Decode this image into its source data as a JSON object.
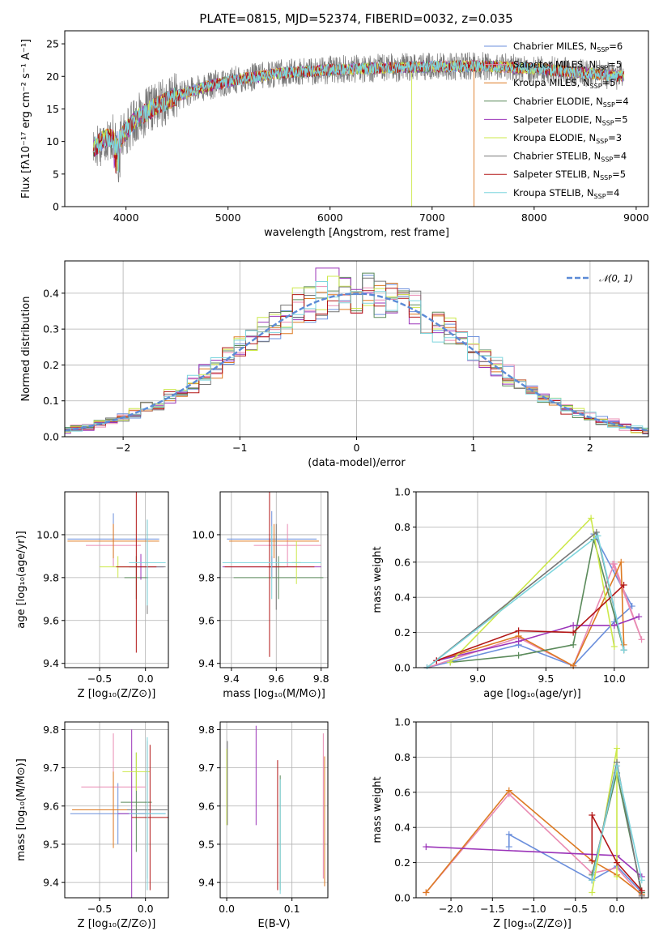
{
  "figure": {
    "title": "PLATE=0815, MJD=52374, FIBERID=0032, z=0.035"
  },
  "series": [
    {
      "name": "Chabrier MILES",
      "nssp": "6",
      "color": "#6b8fdc"
    },
    {
      "name": "Salpeter MILES",
      "nssp": "5",
      "color": "#e98bb3"
    },
    {
      "name": "Kroupa MILES",
      "nssp": "5",
      "color": "#dd7a22"
    },
    {
      "name": "Chabrier ELODIE",
      "nssp": "4",
      "color": "#5a8a5a"
    },
    {
      "name": "Salpeter ELODIE",
      "nssp": "5",
      "color": "#9b34b9"
    },
    {
      "name": "Kroupa ELODIE",
      "nssp": "3",
      "color": "#cce84a"
    },
    {
      "name": "Chabrier STELIB",
      "nssp": "4",
      "color": "#777777"
    },
    {
      "name": "Salpeter STELIB",
      "nssp": "5",
      "color": "#b21616"
    },
    {
      "name": "Kroupa STELIB",
      "nssp": "4",
      "color": "#7dd5dd"
    }
  ],
  "chart_data": [
    {
      "id": "spectrum",
      "type": "line",
      "title": "PLATE=0815, MJD=52374, FIBERID=0032, z=0.035",
      "xlabel": "wavelength [Angstrom, rest frame]",
      "ylabel": "Flux [fλ10⁻¹⁷ erg cm⁻² s⁻¹ A⁻¹]",
      "xlim": [
        3400,
        9120
      ],
      "ylim": [
        0,
        27
      ],
      "xticks": [
        4000,
        5000,
        6000,
        7000,
        8000,
        9000
      ],
      "yticks": [
        0,
        5,
        10,
        15,
        20,
        25
      ],
      "grid": false,
      "legend": "upper right",
      "continuum": {
        "x": [
          3680,
          3800,
          3950,
          4100,
          4300,
          4500,
          4800,
          5100,
          5500,
          6000,
          6500,
          7000,
          7500,
          8000,
          8500,
          8880
        ],
        "y": [
          9.0,
          10.5,
          10.5,
          13.5,
          15.5,
          17.0,
          18.5,
          19.5,
          20.5,
          21.0,
          21.3,
          21.5,
          21.6,
          21.2,
          20.5,
          20.0
        ]
      },
      "dropouts": [
        {
          "series": "Kroupa ELODIE",
          "x": 6800,
          "to": 0
        },
        {
          "series": "Kroupa MILES",
          "x": 7410,
          "to": 0
        }
      ]
    },
    {
      "id": "residuals",
      "type": "step",
      "xlabel": "(data-model)/error",
      "ylabel": "Normed distribution",
      "xlim": [
        -2.5,
        2.5
      ],
      "ylim": [
        0,
        0.49
      ],
      "xticks": [
        -2,
        -1,
        0,
        1,
        2
      ],
      "yticks": [
        0.0,
        0.1,
        0.2,
        0.3,
        0.4
      ],
      "grid": true,
      "legend": "upper right",
      "reference": {
        "name": "𝒩(0, 1)",
        "style": "dashed",
        "color": "#5b8ad6"
      },
      "bin_width": 0.1
    },
    {
      "id": "age-vs-z",
      "type": "errorbar",
      "xlabel": "Z [log₁₀(Z/Z⊙)]",
      "ylabel": "age  [log₁₀(age/yr)]",
      "xlim": [
        -0.88,
        0.25
      ],
      "ylim": [
        9.38,
        10.2
      ],
      "xticks": [
        -0.5,
        0.0
      ],
      "yticks": [
        9.4,
        9.6,
        9.8,
        10.0
      ],
      "grid": true,
      "points": [
        {
          "series": "Chabrier MILES",
          "x": -0.35,
          "xerr": 0.5,
          "y": 9.98,
          "yerr": 0.12
        },
        {
          "series": "Salpeter MILES",
          "x": -0.35,
          "xerr": 0.3,
          "y": 9.95,
          "yerr": 0.1
        },
        {
          "series": "Kroupa MILES",
          "x": -0.35,
          "xerr": 0.5,
          "y": 9.97,
          "yerr": 0.08
        },
        {
          "series": "Chabrier ELODIE",
          "x": -0.1,
          "xerr": 0.13,
          "y": 9.8,
          "yerr": 0.1
        },
        {
          "series": "Salpeter ELODIE",
          "x": -0.05,
          "xerr": 0.25,
          "y": 9.85,
          "yerr": 0.06
        },
        {
          "series": "Kroupa ELODIE",
          "x": -0.3,
          "xerr": 0.2,
          "y": 9.85,
          "yerr": 0.05
        },
        {
          "series": "Chabrier STELIB",
          "x": 0.02,
          "xerr": 0.2,
          "y": 9.85,
          "yerr": 0.22
        },
        {
          "series": "Salpeter STELIB",
          "x": -0.1,
          "xerr": 0.22,
          "y": 9.85,
          "yerr": 0.4
        },
        {
          "series": "Kroupa STELIB",
          "x": 0.02,
          "xerr": 0.2,
          "y": 9.87,
          "yerr": 0.2
        }
      ]
    },
    {
      "id": "age-vs-mass",
      "type": "errorbar",
      "xlabel": "mass [log₁₀(M/M⊙)]",
      "ylabel": "",
      "xlim": [
        9.35,
        9.83
      ],
      "ylim": [
        9.38,
        10.2
      ],
      "xticks": [
        9.4,
        9.6,
        9.8
      ],
      "yticks": [
        9.4,
        9.6,
        9.8,
        10.0
      ],
      "grid": true,
      "points": [
        {
          "series": "Chabrier MILES",
          "x": 9.58,
          "xerr": 0.2,
          "y": 9.98,
          "yerr": 0.13
        },
        {
          "series": "Salpeter MILES",
          "x": 9.65,
          "xerr": 0.15,
          "y": 9.95,
          "yerr": 0.1
        },
        {
          "series": "Kroupa MILES",
          "x": 9.59,
          "xerr": 0.2,
          "y": 9.97,
          "yerr": 0.08
        },
        {
          "series": "Chabrier ELODIE",
          "x": 9.61,
          "xerr": 0.2,
          "y": 9.8,
          "yerr": 0.1
        },
        {
          "series": "Salpeter ELODIE",
          "x": 9.58,
          "xerr": 0.22,
          "y": 9.85,
          "yerr": 0.05
        },
        {
          "series": "Kroupa ELODIE",
          "x": 9.69,
          "xerr": 0.02,
          "y": 9.87,
          "yerr": 0.1
        },
        {
          "series": "Chabrier STELIB",
          "x": 9.6,
          "xerr": 0.04,
          "y": 9.85,
          "yerr": 0.2
        },
        {
          "series": "Salpeter STELIB",
          "x": 9.57,
          "xerr": 0.2,
          "y": 9.85,
          "yerr": 0.42
        },
        {
          "series": "Kroupa STELIB",
          "x": 9.58,
          "xerr": 0.22,
          "y": 9.87,
          "yerr": 0.17
        }
      ]
    },
    {
      "id": "weight-vs-age",
      "type": "line",
      "xlabel": "age  [log₁₀(age/yr)]",
      "ylabel": "mass weight",
      "xlim": [
        8.55,
        10.25
      ],
      "ylim": [
        0,
        1.0
      ],
      "xticks": [
        9.0,
        9.5,
        10.0
      ],
      "yticks": [
        0.0,
        0.2,
        0.4,
        0.6,
        0.8,
        1.0
      ],
      "grid": true,
      "lines": [
        {
          "series": "Chabrier MILES",
          "x": [
            8.63,
            9.3,
            9.7,
            10.0,
            10.13,
            9.85
          ],
          "y": [
            0.0,
            0.13,
            0.01,
            0.26,
            0.35,
            0.76
          ]
        },
        {
          "series": "Salpeter MILES",
          "x": [
            8.63,
            9.3,
            9.7,
            10.0,
            10.2,
            9.99
          ],
          "y": [
            0.0,
            0.17,
            0.01,
            0.59,
            0.16,
            0.59
          ]
        },
        {
          "series": "Kroupa MILES",
          "x": [
            8.7,
            9.3,
            9.7,
            10.05,
            10.07
          ],
          "y": [
            0.04,
            0.18,
            0.01,
            0.6,
            0.13
          ]
        },
        {
          "series": "Chabrier ELODIE",
          "x": [
            8.8,
            9.3,
            9.7,
            9.85,
            10.07
          ],
          "y": [
            0.03,
            0.07,
            0.13,
            0.73,
            0.1
          ]
        },
        {
          "series": "Salpeter ELODIE",
          "x": [
            8.7,
            9.3,
            9.7,
            10.0,
            10.18
          ],
          "y": [
            0.04,
            0.15,
            0.24,
            0.24,
            0.29
          ]
        },
        {
          "series": "Kroupa ELODIE",
          "x": [
            8.8,
            9.83,
            10.0
          ],
          "y": [
            0.03,
            0.85,
            0.12
          ]
        },
        {
          "series": "Chabrier STELIB",
          "x": [
            8.63,
            9.87,
            10.07
          ],
          "y": [
            0.0,
            0.77,
            0.1
          ]
        },
        {
          "series": "Salpeter STELIB",
          "x": [
            8.7,
            9.3,
            9.7,
            10.07
          ],
          "y": [
            0.04,
            0.21,
            0.2,
            0.47
          ]
        },
        {
          "series": "Kroupa STELIB",
          "x": [
            8.63,
            9.88,
            10.07
          ],
          "y": [
            0.0,
            0.75,
            0.1
          ]
        }
      ]
    },
    {
      "id": "mass-vs-z",
      "type": "errorbar",
      "xlabel": "Z [log₁₀(Z/Z⊙)]",
      "ylabel": "mass [log₁₀(M/M⊙)]",
      "xlim": [
        -0.88,
        0.25
      ],
      "ylim": [
        9.36,
        9.82
      ],
      "xticks": [
        -0.5,
        0.0
      ],
      "yticks": [
        9.4,
        9.5,
        9.6,
        9.7,
        9.8
      ],
      "grid": true,
      "points": [
        {
          "series": "Chabrier MILES",
          "x": -0.3,
          "xerr": 0.52,
          "y": 9.58,
          "yerr": 0.08
        },
        {
          "series": "Salpeter MILES",
          "x": -0.35,
          "xerr": 0.35,
          "y": 9.65,
          "yerr": 0.14
        },
        {
          "series": "Kroupa MILES",
          "x": -0.35,
          "xerr": 0.45,
          "y": 9.59,
          "yerr": 0.1
        },
        {
          "series": "Chabrier ELODIE",
          "x": -0.1,
          "xerr": 0.17,
          "y": 9.61,
          "yerr": 0.13
        },
        {
          "series": "Salpeter ELODIE",
          "x": -0.15,
          "xerr": 0.15,
          "y": 9.58,
          "yerr": 0.22
        },
        {
          "series": "Kroupa ELODIE",
          "x": -0.1,
          "xerr": 0.15,
          "y": 9.69,
          "yerr": 0.05
        },
        {
          "series": "Chabrier STELIB",
          "x": 0.02,
          "xerr": 0.22,
          "y": 9.59,
          "yerr": 0.18
        },
        {
          "series": "Salpeter STELIB",
          "x": 0.05,
          "xerr": 0.2,
          "y": 9.57,
          "yerr": 0.19
        },
        {
          "series": "Kroupa STELIB",
          "x": 0.02,
          "xerr": 0.2,
          "y": 9.58,
          "yerr": 0.2
        }
      ]
    },
    {
      "id": "mass-vs-ebv",
      "type": "errorbar",
      "xlabel": "E(B-V)",
      "ylabel": "",
      "xlim": [
        -0.01,
        0.155
      ],
      "ylim": [
        9.36,
        9.82
      ],
      "xticks": [
        0.0,
        0.1
      ],
      "yticks": [
        9.4,
        9.5,
        9.6,
        9.7,
        9.8
      ],
      "grid": true,
      "points": [
        {
          "series": "Kroupa ELODIE",
          "x": 0.0,
          "y": 9.65,
          "yerr": 0.1
        },
        {
          "series": "Chabrier STELIB",
          "x": 0.001,
          "y": 9.66,
          "yerr": 0.11
        },
        {
          "series": "Salpeter ELODIE",
          "x": 0.045,
          "y": 9.68,
          "yerr": 0.13
        },
        {
          "series": "Salpeter STELIB",
          "x": 0.078,
          "y": 9.55,
          "yerr": 0.17
        },
        {
          "series": "Chabrier ELODIE",
          "x": 0.082,
          "y": 9.53,
          "yerr": 0.15
        },
        {
          "series": "Kroupa STELIB",
          "x": 0.082,
          "y": 9.52,
          "yerr": 0.15
        },
        {
          "series": "Salpeter MILES",
          "x": 0.148,
          "y": 9.6,
          "yerr": 0.19
        },
        {
          "series": "Kroupa MILES",
          "x": 0.15,
          "y": 9.56,
          "yerr": 0.17
        }
      ]
    },
    {
      "id": "weight-vs-z",
      "type": "line",
      "xlabel": "Z [log₁₀(Z/Z⊙)]",
      "ylabel": "mass weight",
      "xlim": [
        -2.42,
        0.38
      ],
      "ylim": [
        0,
        1.0
      ],
      "xticks": [
        -2.0,
        -1.5,
        -1.0,
        -0.5,
        0.0
      ],
      "yticks": [
        0.0,
        0.2,
        0.4,
        0.6,
        0.8,
        1.0
      ],
      "grid": true,
      "lines": [
        {
          "series": "Chabrier MILES",
          "x": [
            -1.3,
            -1.3,
            -0.3,
            0.0,
            0.3
          ],
          "y": [
            0.29,
            0.36,
            0.1,
            0.18,
            0.03
          ]
        },
        {
          "series": "Salpeter MILES",
          "x": [
            -2.3,
            -1.3,
            -0.3,
            0.0,
            0.3
          ],
          "y": [
            0.03,
            0.59,
            0.14,
            0.17,
            0.01
          ]
        },
        {
          "series": "Kroupa MILES",
          "x": [
            -2.3,
            -1.3,
            -0.3,
            0.0,
            0.3
          ],
          "y": [
            0.03,
            0.61,
            0.21,
            0.13,
            0.02
          ]
        },
        {
          "series": "Chabrier ELODIE",
          "x": [
            -0.3,
            0.0,
            0.3
          ],
          "y": [
            0.13,
            0.71,
            0.03
          ]
        },
        {
          "series": "Salpeter ELODIE",
          "x": [
            -2.3,
            0.0,
            0.3
          ],
          "y": [
            0.29,
            0.24,
            0.12
          ]
        },
        {
          "series": "Kroupa ELODIE",
          "x": [
            -0.3,
            0.0,
            0.0
          ],
          "y": [
            0.03,
            0.85,
            0.12
          ]
        },
        {
          "series": "Chabrier STELIB",
          "x": [
            -0.3,
            0.0,
            0.3
          ],
          "y": [
            0.1,
            0.77,
            0.01
          ]
        },
        {
          "series": "Salpeter STELIB",
          "x": [
            -0.3,
            -0.3,
            0.0,
            0.3
          ],
          "y": [
            0.21,
            0.47,
            0.2,
            0.04
          ]
        },
        {
          "series": "Kroupa STELIB",
          "x": [
            -0.3,
            0.0,
            0.3
          ],
          "y": [
            0.1,
            0.75,
            0.1
          ]
        }
      ]
    }
  ]
}
